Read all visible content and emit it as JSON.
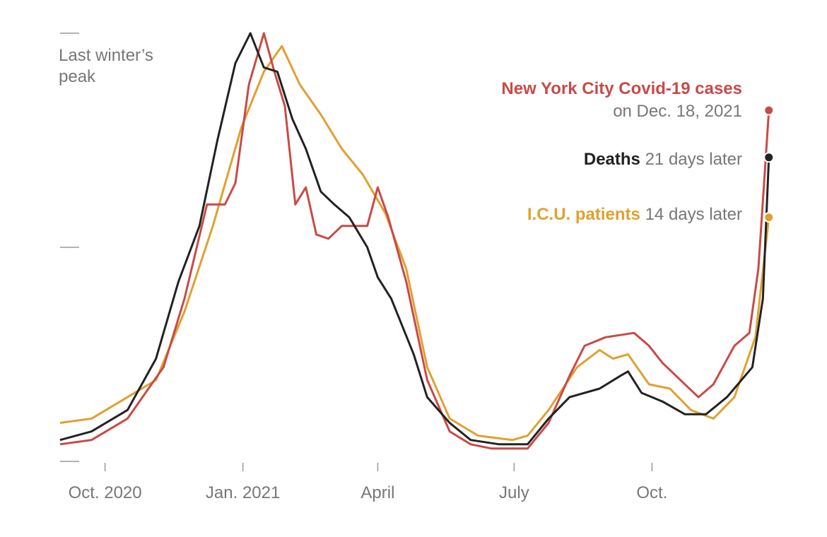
{
  "chart_data": {
    "type": "line",
    "title": "New York City Covid-19 cases on Dec. 18, 2021",
    "x_unit": "days since 2020-09-01",
    "y_unit": "percent of last winter's peak",
    "ylim": [
      0,
      100
    ],
    "xlim": [
      0,
      473
    ],
    "y_annotation": "Last winter's peak",
    "y_ticks": [
      0,
      50,
      100
    ],
    "x_ticks": [
      {
        "day": 30,
        "label": "Oct. 2020"
      },
      {
        "day": 122,
        "label": "Jan. 2021"
      },
      {
        "day": 212,
        "label": "April"
      },
      {
        "day": 303,
        "label": "July"
      },
      {
        "day": 395,
        "label": "Oct."
      }
    ],
    "legend": {
      "cases": {
        "bold": "New York City Covid-19 cases",
        "rest": "on Dec. 18, 2021"
      },
      "deaths": {
        "bold": "Deaths",
        "rest": "21 days later"
      },
      "icu": {
        "bold": "I.C.U. patients",
        "rest": "14 days later"
      }
    },
    "series": [
      {
        "name": "Cases",
        "key": "cases",
        "color": "#c94a47",
        "points": [
          [
            0,
            4
          ],
          [
            21,
            5
          ],
          [
            45,
            10
          ],
          [
            69,
            22
          ],
          [
            83,
            38
          ],
          [
            98,
            60
          ],
          [
            110,
            60
          ],
          [
            117,
            65
          ],
          [
            126,
            88
          ],
          [
            136,
            100
          ],
          [
            143,
            91
          ],
          [
            150,
            83
          ],
          [
            157,
            60
          ],
          [
            164,
            64
          ],
          [
            171,
            53
          ],
          [
            179,
            52
          ],
          [
            188,
            55
          ],
          [
            205,
            55
          ],
          [
            212,
            64
          ],
          [
            219,
            57
          ],
          [
            231,
            42
          ],
          [
            245,
            19
          ],
          [
            260,
            7
          ],
          [
            274,
            4
          ],
          [
            288,
            3
          ],
          [
            312,
            3
          ],
          [
            326,
            9
          ],
          [
            340,
            20
          ],
          [
            350,
            27
          ],
          [
            364,
            29
          ],
          [
            383,
            30
          ],
          [
            393,
            27
          ],
          [
            402,
            23
          ],
          [
            417,
            18
          ],
          [
            426,
            15
          ],
          [
            436,
            18
          ],
          [
            450,
            27
          ],
          [
            460,
            30
          ],
          [
            466,
            45
          ],
          [
            470,
            66
          ],
          [
            473,
            82
          ]
        ]
      },
      {
        "name": "Deaths",
        "key": "deaths",
        "color": "#222222",
        "points": [
          [
            0,
            5
          ],
          [
            21,
            7
          ],
          [
            45,
            12
          ],
          [
            64,
            24
          ],
          [
            79,
            42
          ],
          [
            93,
            55
          ],
          [
            105,
            75
          ],
          [
            117,
            93
          ],
          [
            127,
            100
          ],
          [
            136,
            92
          ],
          [
            145,
            91
          ],
          [
            155,
            80
          ],
          [
            164,
            73
          ],
          [
            174,
            63
          ],
          [
            183,
            60
          ],
          [
            193,
            57
          ],
          [
            205,
            50
          ],
          [
            212,
            43
          ],
          [
            221,
            38
          ],
          [
            236,
            25
          ],
          [
            245,
            15
          ],
          [
            260,
            9
          ],
          [
            274,
            5
          ],
          [
            293,
            4
          ],
          [
            312,
            4
          ],
          [
            326,
            10
          ],
          [
            340,
            15
          ],
          [
            360,
            17
          ],
          [
            374,
            20
          ],
          [
            379,
            21
          ],
          [
            388,
            16
          ],
          [
            402,
            14
          ],
          [
            417,
            11
          ],
          [
            431,
            11
          ],
          [
            445,
            15
          ],
          [
            462,
            22
          ],
          [
            469,
            38
          ],
          [
            473,
            71
          ]
        ]
      },
      {
        "name": "I.C.U. patients",
        "key": "icu",
        "color": "#e0a030",
        "points": [
          [
            0,
            9
          ],
          [
            21,
            10
          ],
          [
            45,
            15
          ],
          [
            64,
            19
          ],
          [
            83,
            35
          ],
          [
            102,
            55
          ],
          [
            121,
            78
          ],
          [
            136,
            91
          ],
          [
            148,
            97
          ],
          [
            160,
            88
          ],
          [
            174,
            81
          ],
          [
            188,
            73
          ],
          [
            202,
            67
          ],
          [
            217,
            58
          ],
          [
            231,
            45
          ],
          [
            245,
            22
          ],
          [
            260,
            10
          ],
          [
            279,
            6
          ],
          [
            302,
            5
          ],
          [
            312,
            6
          ],
          [
            326,
            12
          ],
          [
            345,
            22
          ],
          [
            360,
            26
          ],
          [
            369,
            24
          ],
          [
            379,
            25
          ],
          [
            393,
            18
          ],
          [
            407,
            17
          ],
          [
            421,
            12
          ],
          [
            436,
            10
          ],
          [
            450,
            15
          ],
          [
            464,
            29
          ],
          [
            473,
            57
          ]
        ]
      }
    ]
  }
}
